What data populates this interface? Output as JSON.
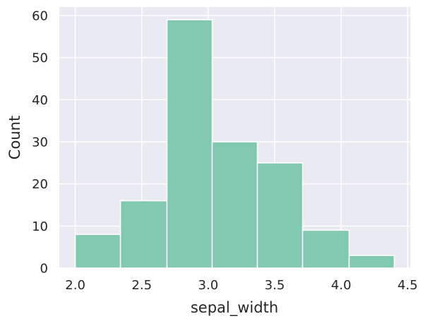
{
  "chart_data": {
    "type": "histogram",
    "xlabel": "sepal_width",
    "ylabel": "Count",
    "bins": [
      {
        "x0": 2.0,
        "x1": 2.34,
        "count": 8
      },
      {
        "x0": 2.34,
        "x1": 2.69,
        "count": 16
      },
      {
        "x0": 2.69,
        "x1": 3.03,
        "count": 59
      },
      {
        "x0": 3.03,
        "x1": 3.37,
        "count": 30
      },
      {
        "x0": 3.37,
        "x1": 3.71,
        "count": 25
      },
      {
        "x0": 3.71,
        "x1": 4.06,
        "count": 9
      },
      {
        "x0": 4.06,
        "x1": 4.4,
        "count": 3
      }
    ],
    "xticks": [
      "2.0",
      "2.5",
      "3.0",
      "3.5",
      "4.0",
      "4.5"
    ],
    "yticks": [
      "0",
      "10",
      "20",
      "30",
      "40",
      "50",
      "60"
    ],
    "xlim": [
      1.88,
      4.52
    ],
    "ylim": [
      0,
      62
    ],
    "grid": true,
    "colors": {
      "bar_fill": "#80c9b0",
      "bar_edge": "#ffffff",
      "plot_background": "#eaeaf2",
      "grid": "#ffffff"
    }
  }
}
